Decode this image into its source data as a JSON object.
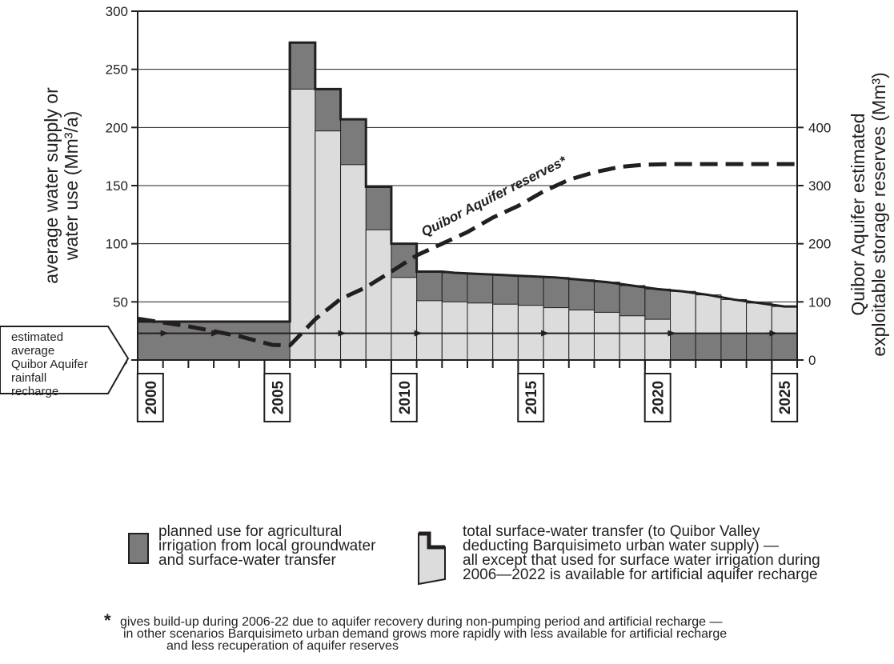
{
  "chart_data": {
    "type": "bar",
    "title": "",
    "ylabel": [
      "average water supply or",
      "water use (Mm³/a)"
    ],
    "y2label": [
      "Quibor Aquifer estimated",
      "exploitable storage reserves (Mm³)"
    ],
    "ylim": [
      0,
      300
    ],
    "y2lim": [
      0,
      600
    ],
    "yticks": [
      "0",
      "50",
      "100",
      "150",
      "200",
      "250",
      "300"
    ],
    "y2ticks": [
      "0",
      "100",
      "200",
      "300",
      "400"
    ],
    "xticks": [
      "2000",
      "2005",
      "2010",
      "2015",
      "2020",
      "2025"
    ],
    "xlim": [
      2000,
      2026
    ],
    "grid": true,
    "total_transfer": {
      "years": [
        2000,
        2001,
        2002,
        2003,
        2004,
        2005,
        2006,
        2007,
        2008,
        2009,
        2010,
        2011,
        2012,
        2013,
        2014,
        2015,
        2016,
        2017,
        2018,
        2019,
        2020,
        2021,
        2022,
        2023,
        2024,
        2025
      ],
      "values": [
        33,
        33,
        33,
        33,
        33,
        33,
        273,
        233,
        207,
        149,
        100,
        76,
        75,
        74,
        73,
        72,
        71,
        69,
        67,
        64,
        61,
        59,
        56,
        52,
        49,
        46
      ]
    },
    "surface_irrigation_top": {
      "years": [
        2006,
        2007,
        2008,
        2009,
        2010,
        2011,
        2012,
        2013,
        2014,
        2015,
        2016,
        2017,
        2018,
        2019,
        2020
      ],
      "values": [
        233,
        197,
        168,
        112,
        71,
        51,
        50,
        49,
        48,
        47,
        45,
        43,
        41,
        38,
        35
      ]
    },
    "groundwater_irrigation_years": [
      2021,
      2022,
      2023,
      2024,
      2025
    ],
    "rainfall_recharge_level": 23,
    "reserves_curve": [
      [
        2000,
        71
      ],
      [
        2002,
        58
      ],
      [
        2004,
        41
      ],
      [
        2005.3,
        26
      ],
      [
        2006,
        25
      ],
      [
        2007,
        70
      ],
      [
        2008,
        105
      ],
      [
        2009,
        125
      ],
      [
        2010,
        152
      ],
      [
        2011,
        180
      ],
      [
        2012,
        200
      ],
      [
        2013,
        220
      ],
      [
        2014,
        245
      ],
      [
        2015,
        265
      ],
      [
        2016,
        290
      ],
      [
        2017,
        310
      ],
      [
        2018,
        323
      ],
      [
        2019,
        332
      ],
      [
        2020,
        336
      ],
      [
        2021,
        337
      ],
      [
        2022,
        337
      ],
      [
        2023,
        337
      ],
      [
        2024,
        337
      ],
      [
        2025,
        337
      ],
      [
        2026,
        337
      ]
    ],
    "reserves_label": "Quibor Aquifer reserves*",
    "annotation": [
      "estimated",
      "average",
      "Quibor Aquifer",
      "rainfall",
      "recharge"
    ]
  },
  "legend": {
    "dark": [
      "planned use for agricultural",
      "irrigation from local groundwater",
      "and surface-water transfer"
    ],
    "light": [
      "total  surface-water transfer (to Quibor Valley",
      "deducting Barquisimeto urban water supply) —",
      "all except that used for surface water irrigation during",
      "2006—2022 is available for artificial aquifer recharge"
    ]
  },
  "footnote": {
    "star": "*",
    "lines": [
      "gives build-up during 2006-22 due to aquifer recovery during non-pumping period and artificial recharge —",
      "in other scenarios Barquisimeto urban demand grows more rapidly with less available for artificial recharge",
      "and less recuperation of aquifer reserves"
    ]
  },
  "colors": {
    "dark": "#7b7b7b",
    "light": "#dcdcdc",
    "ink": "#231f20"
  }
}
